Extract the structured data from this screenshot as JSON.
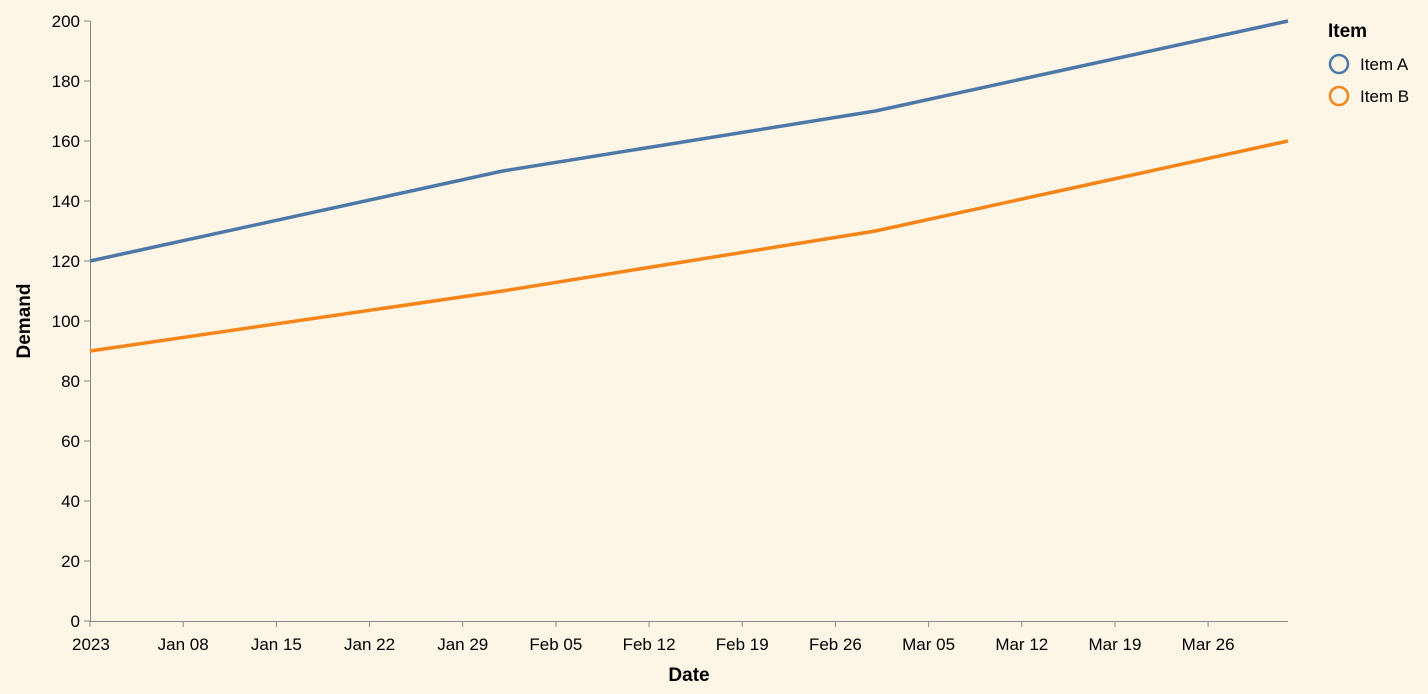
{
  "chart_data": {
    "type": "line",
    "xlabel": "Date",
    "ylabel": "Demand",
    "x_range": [
      "2023-01-01",
      "2023-04-01"
    ],
    "ylim": [
      0,
      200
    ],
    "y_ticks": [
      0,
      20,
      40,
      60,
      80,
      100,
      120,
      140,
      160,
      180,
      200
    ],
    "x_ticks": [
      {
        "date": "2023-01-01",
        "label": "2023"
      },
      {
        "date": "2023-01-08",
        "label": "Jan 08"
      },
      {
        "date": "2023-01-15",
        "label": "Jan 15"
      },
      {
        "date": "2023-01-22",
        "label": "Jan 22"
      },
      {
        "date": "2023-01-29",
        "label": "Jan 29"
      },
      {
        "date": "2023-02-05",
        "label": "Feb 05"
      },
      {
        "date": "2023-02-12",
        "label": "Feb 12"
      },
      {
        "date": "2023-02-19",
        "label": "Feb 19"
      },
      {
        "date": "2023-02-26",
        "label": "Feb 26"
      },
      {
        "date": "2023-03-05",
        "label": "Mar 05"
      },
      {
        "date": "2023-03-12",
        "label": "Mar 12"
      },
      {
        "date": "2023-03-19",
        "label": "Mar 19"
      },
      {
        "date": "2023-03-26",
        "label": "Mar 26"
      }
    ],
    "x": [
      "2023-01-01",
      "2023-02-01",
      "2023-03-01",
      "2023-04-01"
    ],
    "series": [
      {
        "name": "Item A",
        "color": "#4c78a8",
        "values": [
          120,
          150,
          170,
          200
        ]
      },
      {
        "name": "Item B",
        "color": "#f58518",
        "values": [
          90,
          110,
          130,
          160
        ]
      }
    ],
    "legend": {
      "title": "Item",
      "position": "top-right"
    },
    "grid": false
  }
}
